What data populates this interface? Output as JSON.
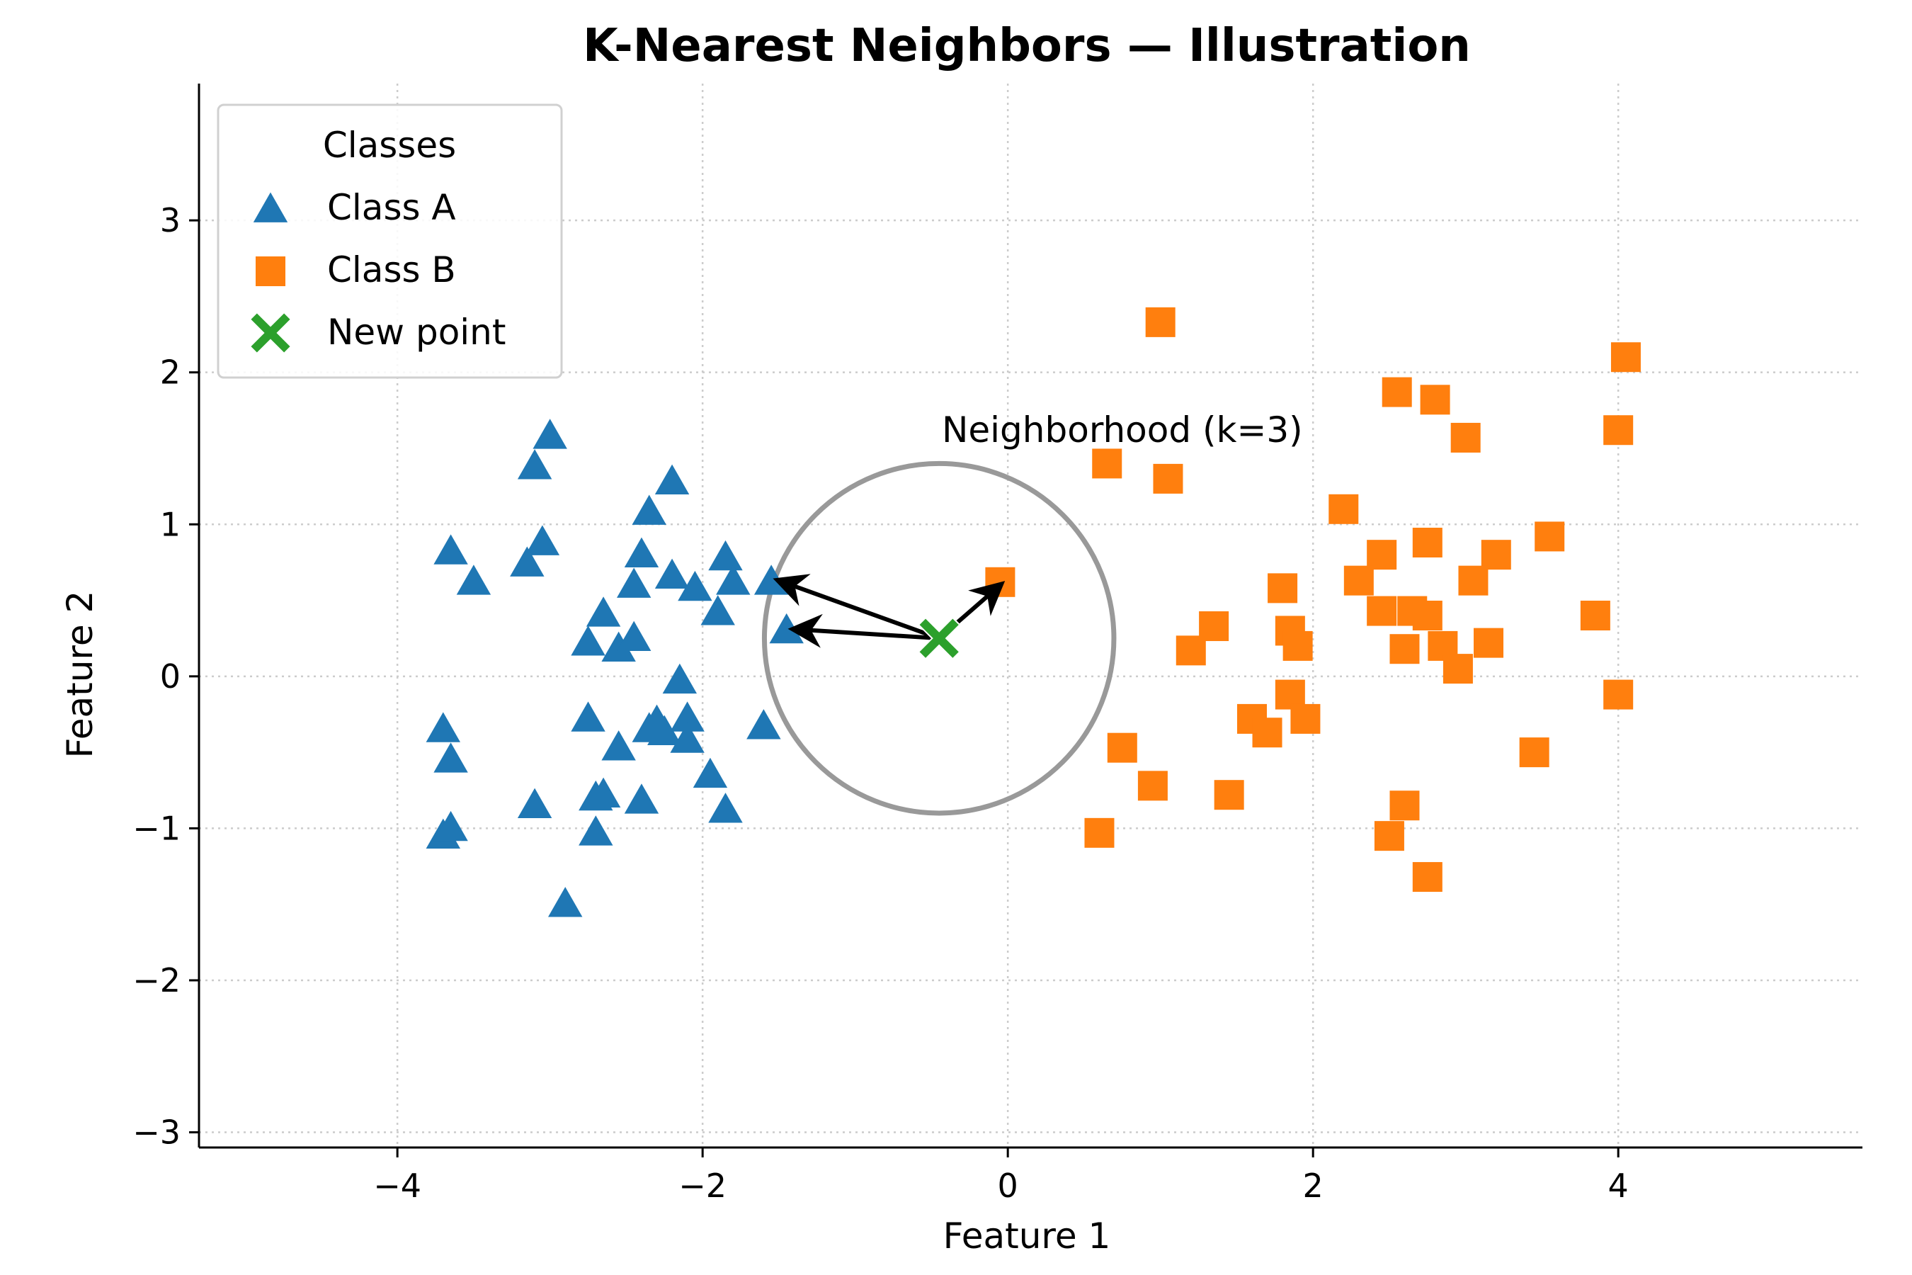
{
  "chart_data": {
    "type": "scatter",
    "title": "K-Nearest Neighbors — Illustration",
    "xlabel": "Feature 1",
    "ylabel": "Feature 2",
    "xlim": [
      -5.3,
      5.6
    ],
    "ylim": [
      -3.1,
      3.9
    ],
    "xticks": [
      -4,
      -2,
      0,
      2,
      4
    ],
    "xtick_labels": [
      "−4",
      "−2",
      "0",
      "2",
      "4"
    ],
    "yticks": [
      -3,
      -2,
      -1,
      0,
      1,
      2,
      3
    ],
    "ytick_labels": [
      "−3",
      "−2",
      "−1",
      "0",
      "1",
      "2",
      "3"
    ],
    "grid": true,
    "legend": {
      "title": "Classes",
      "placement": "top-left",
      "entries": [
        "Class A",
        "Class B",
        "New point"
      ]
    },
    "colors": {
      "class_a": "#1f77b4",
      "class_b": "#ff7f0e",
      "new_point": "#2ca02c",
      "circle": "#999999",
      "grid": "#cccccc"
    },
    "series": [
      {
        "name": "Class A",
        "marker": "triangle",
        "points": [
          [
            -3.0,
            1.58
          ],
          [
            -3.1,
            1.38
          ],
          [
            -3.65,
            0.82
          ],
          [
            -3.5,
            0.62
          ],
          [
            -3.15,
            0.74
          ],
          [
            -3.05,
            0.88
          ],
          [
            -2.2,
            1.28
          ],
          [
            -2.35,
            1.08
          ],
          [
            -2.4,
            0.8
          ],
          [
            -2.2,
            0.66
          ],
          [
            -2.45,
            0.6
          ],
          [
            -2.05,
            0.58
          ],
          [
            -1.85,
            0.78
          ],
          [
            -1.8,
            0.62
          ],
          [
            -1.9,
            0.42
          ],
          [
            -1.55,
            0.62
          ],
          [
            -1.45,
            0.3
          ],
          [
            -2.65,
            0.41
          ],
          [
            -2.75,
            0.22
          ],
          [
            -2.55,
            0.18
          ],
          [
            -2.45,
            0.25
          ],
          [
            -2.15,
            -0.03
          ],
          [
            -3.7,
            -0.35
          ],
          [
            -3.65,
            -0.55
          ],
          [
            -2.75,
            -0.28
          ],
          [
            -2.55,
            -0.47
          ],
          [
            -2.35,
            -0.35
          ],
          [
            -2.3,
            -0.3
          ],
          [
            -2.25,
            -0.37
          ],
          [
            -2.1,
            -0.28
          ],
          [
            -2.1,
            -0.42
          ],
          [
            -1.6,
            -0.33
          ],
          [
            -1.95,
            -0.65
          ],
          [
            -3.1,
            -0.85
          ],
          [
            -2.7,
            -0.8
          ],
          [
            -2.65,
            -0.78
          ],
          [
            -2.4,
            -0.82
          ],
          [
            -1.85,
            -0.88
          ],
          [
            -3.7,
            -1.05
          ],
          [
            -3.65,
            -1.0
          ],
          [
            -2.7,
            -1.03
          ],
          [
            -2.9,
            -1.5
          ]
        ]
      },
      {
        "name": "Class B",
        "marker": "square",
        "points": [
          [
            1.0,
            2.33
          ],
          [
            4.05,
            2.1
          ],
          [
            2.55,
            1.87
          ],
          [
            2.8,
            1.82
          ],
          [
            3.0,
            1.57
          ],
          [
            4.0,
            1.62
          ],
          [
            0.65,
            1.4
          ],
          [
            1.05,
            1.3
          ],
          [
            2.2,
            1.1
          ],
          [
            3.55,
            0.92
          ],
          [
            2.75,
            0.88
          ],
          [
            2.45,
            0.8
          ],
          [
            3.2,
            0.8
          ],
          [
            2.3,
            0.63
          ],
          [
            3.05,
            0.63
          ],
          [
            -0.05,
            0.62
          ],
          [
            1.8,
            0.58
          ],
          [
            1.35,
            0.33
          ],
          [
            1.2,
            0.17
          ],
          [
            2.45,
            0.43
          ],
          [
            2.65,
            0.43
          ],
          [
            2.75,
            0.4
          ],
          [
            3.85,
            0.4
          ],
          [
            1.85,
            0.3
          ],
          [
            1.9,
            0.2
          ],
          [
            2.6,
            0.18
          ],
          [
            2.85,
            0.2
          ],
          [
            3.15,
            0.22
          ],
          [
            2.95,
            0.05
          ],
          [
            1.85,
            -0.12
          ],
          [
            4.0,
            -0.12
          ],
          [
            1.6,
            -0.28
          ],
          [
            1.95,
            -0.28
          ],
          [
            1.7,
            -0.37
          ],
          [
            0.75,
            -0.47
          ],
          [
            3.45,
            -0.5
          ],
          [
            0.95,
            -0.72
          ],
          [
            1.45,
            -0.78
          ],
          [
            2.6,
            -0.85
          ],
          [
            0.6,
            -1.03
          ],
          [
            2.5,
            -1.05
          ],
          [
            2.75,
            -1.32
          ]
        ]
      },
      {
        "name": "New point",
        "marker": "x",
        "points": [
          [
            -0.45,
            0.25
          ]
        ]
      }
    ],
    "neighborhood": {
      "label": "Neighborhood (k=3)",
      "center": [
        -0.45,
        0.25
      ],
      "radius": 1.15
    },
    "neighbor_arrows": [
      [
        -1.5,
        0.63
      ],
      [
        -1.4,
        0.31
      ],
      [
        -0.05,
        0.6
      ]
    ]
  }
}
